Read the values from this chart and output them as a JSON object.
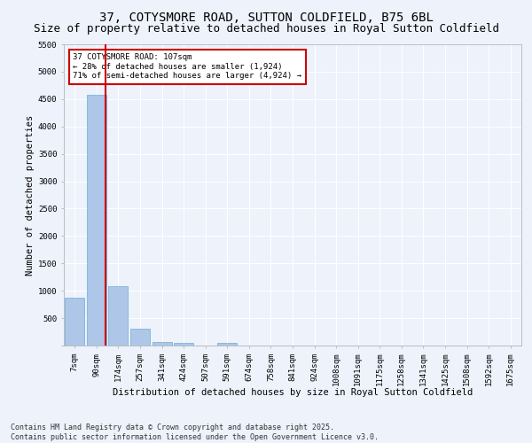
{
  "title": "37, COTYSMORE ROAD, SUTTON COLDFIELD, B75 6BL",
  "subtitle": "Size of property relative to detached houses in Royal Sutton Coldfield",
  "xlabel": "Distribution of detached houses by size in Royal Sutton Coldfield",
  "ylabel": "Number of detached properties",
  "categories": [
    "7sqm",
    "90sqm",
    "174sqm",
    "257sqm",
    "341sqm",
    "424sqm",
    "507sqm",
    "591sqm",
    "674sqm",
    "758sqm",
    "841sqm",
    "924sqm",
    "1008sqm",
    "1091sqm",
    "1175sqm",
    "1258sqm",
    "1341sqm",
    "1425sqm",
    "1508sqm",
    "1592sqm",
    "1675sqm"
  ],
  "values": [
    880,
    4580,
    1080,
    310,
    70,
    55,
    0,
    50,
    0,
    0,
    0,
    0,
    0,
    0,
    0,
    0,
    0,
    0,
    0,
    0,
    0
  ],
  "bar_color": "#aec6e8",
  "bar_edge_color": "#6baed6",
  "vline_color": "#cc0000",
  "annotation_text": "37 COTYSMORE ROAD: 107sqm\n← 28% of detached houses are smaller (1,924)\n71% of semi-detached houses are larger (4,924) →",
  "annotation_box_color": "#ffffff",
  "annotation_box_edge": "#cc0000",
  "ylim": [
    0,
    5500
  ],
  "yticks": [
    0,
    500,
    1000,
    1500,
    2000,
    2500,
    3000,
    3500,
    4000,
    4500,
    5000,
    5500
  ],
  "background_color": "#edf2fb",
  "grid_color": "#ffffff",
  "footer": "Contains HM Land Registry data © Crown copyright and database right 2025.\nContains public sector information licensed under the Open Government Licence v3.0.",
  "title_fontsize": 10,
  "subtitle_fontsize": 9,
  "axis_label_fontsize": 7.5,
  "tick_fontsize": 6.5,
  "footer_fontsize": 6
}
